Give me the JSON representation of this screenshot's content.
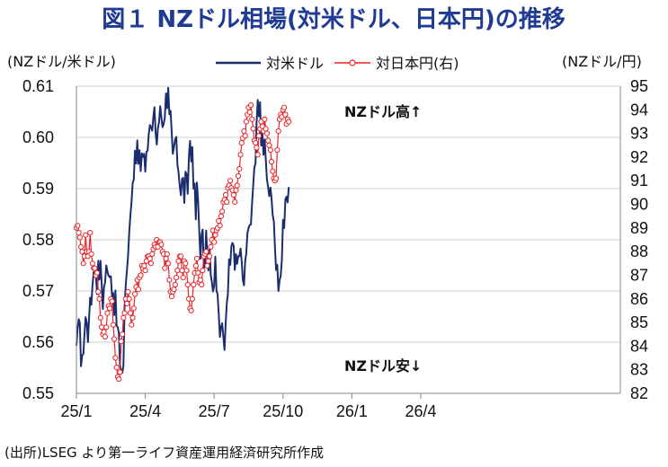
{
  "chart_data": {
    "type": "line",
    "title": "図１ NZドル相場(対米ドル、日本円)の推移",
    "ylabel_left": "(NZドル/米ドル)",
    "ylabel_right": "(NZドル/円)",
    "source": "(出所)LSEG より第一ライフ資産運用経済研究所作成",
    "x_ticks": [
      "25/1",
      "25/4",
      "25/7",
      "25/10",
      "26/1",
      "26/4"
    ],
    "y_left": {
      "min": 0.55,
      "max": 0.61,
      "step": 0.01,
      "ticks": [
        "0.55",
        "0.56",
        "0.57",
        "0.58",
        "0.59",
        "0.60",
        "0.61"
      ]
    },
    "y_right": {
      "min": 82,
      "max": 95,
      "step": 1,
      "ticks": [
        "82",
        "83",
        "84",
        "85",
        "86",
        "87",
        "88",
        "89",
        "90",
        "91",
        "92",
        "93",
        "94",
        "95"
      ]
    },
    "annotations": {
      "up": "NZドル高↑",
      "down": "NZドル安↓"
    },
    "series": [
      {
        "name": "対米ドル",
        "axis": "left",
        "color": "#1a2d6e",
        "marker": "none",
        "x_start": "2025-01-01",
        "x_step_months": 0.05,
        "values": [
          0.5593,
          0.5626,
          0.5645,
          0.5638,
          0.5553,
          0.5574,
          0.5577,
          0.5613,
          0.5649,
          0.5638,
          0.56,
          0.5645,
          0.5687,
          0.5673,
          0.5711,
          0.5737,
          0.5732,
          0.573,
          0.5694,
          0.5759,
          0.5722,
          0.5759,
          0.5713,
          0.5665,
          0.5707,
          0.5717,
          0.575,
          0.5738,
          0.573,
          0.5727,
          0.5729,
          0.569,
          0.5696,
          0.5653,
          0.5701,
          0.5632,
          0.5629,
          0.5618,
          0.5554,
          0.5544,
          0.554,
          0.5554,
          0.567,
          0.5712,
          0.5741,
          0.5767,
          0.5813,
          0.5847,
          0.5874,
          0.5911,
          0.5918,
          0.5974,
          0.5949,
          0.5994,
          0.5948,
          0.5975,
          0.5934,
          0.5969,
          0.5962,
          0.5968,
          0.5933,
          0.5972,
          0.5974,
          0.6005,
          0.6024,
          0.602,
          0.6013,
          0.6039,
          0.6059,
          0.6009,
          0.5986,
          0.6017,
          0.603,
          0.6061,
          0.6039,
          0.602,
          0.6026,
          0.6038,
          0.6086,
          0.6057,
          0.6097,
          0.6045,
          0.6052,
          0.601,
          0.5968,
          0.5981,
          0.5996,
          0.6001,
          0.5948,
          0.5931,
          0.5906,
          0.5887,
          0.5919,
          0.5921,
          0.5872,
          0.5933,
          0.5928,
          0.589,
          0.5962,
          0.5993,
          0.5953,
          0.5981,
          0.59,
          0.591,
          0.584,
          0.5912,
          0.5878,
          0.5819,
          0.5763,
          0.581,
          0.582,
          0.5745,
          0.575,
          0.5818,
          0.5773,
          0.574,
          0.5787,
          0.5731,
          0.5719,
          0.5699,
          0.571,
          0.5767,
          0.57,
          0.5694,
          0.5655,
          0.561,
          0.563,
          0.5637,
          0.5611,
          0.5585,
          0.5636,
          0.5675,
          0.5694,
          0.5762,
          0.5751,
          0.5788,
          0.5794,
          0.5788,
          0.5741,
          0.5772,
          0.5753,
          0.5768,
          0.5768,
          0.5783,
          0.5759,
          0.5722,
          0.5711,
          0.5759,
          0.5773,
          0.5813,
          0.5823,
          0.5829,
          0.583,
          0.5869,
          0.5905,
          0.5941,
          0.5949,
          0.6029,
          0.6073,
          0.6041,
          0.6069,
          0.5984,
          0.601,
          0.5966,
          0.5996,
          0.5958,
          0.5918,
          0.5903,
          0.5885,
          0.5902,
          0.5882,
          0.5848,
          0.5836,
          0.5782,
          0.5741,
          0.5751,
          0.57,
          0.5721,
          0.5729,
          0.576,
          0.5839,
          0.5823,
          0.5879,
          0.5884,
          0.5873,
          0.5903
        ]
      },
      {
        "name": "対日本円(右)",
        "axis": "right",
        "color": "#e8262a",
        "marker": "circle",
        "x_start": "2025-01-01",
        "x_step_months": 0.05,
        "values": [
          89.0,
          89.1,
          88.8,
          88.6,
          88.2,
          88.0,
          87.5,
          87.8,
          88.7,
          88.0,
          87.8,
          88.0,
          88.8,
          87.9,
          87.5,
          87.3,
          87.3,
          87.0,
          87.1,
          86.3,
          86.0,
          85.2,
          84.8,
          84.5,
          84.6,
          84.4,
          84.8,
          85.4,
          85.7,
          85.6,
          86.0,
          85.9,
          84.9,
          84.3,
          83.5,
          83.1,
          82.7,
          82.6,
          82.9,
          84.2,
          84.5,
          85.2,
          85.4,
          86.0,
          85.8,
          86.3,
          86.0,
          85.4,
          84.9,
          85.2,
          85.6,
          86.2,
          86.5,
          86.8,
          86.4,
          86.9,
          87.0,
          87.4,
          87.3,
          87.4,
          87.2,
          87.6,
          87.8,
          87.8,
          87.7,
          87.5,
          87.9,
          88.1,
          88.3,
          88.2,
          88.5,
          88.2,
          88.4,
          88.4,
          88.3,
          88.0,
          87.9,
          87.3,
          87.7,
          87.9,
          87.5,
          86.8,
          86.3,
          86.1,
          86.3,
          86.4,
          86.6,
          86.9,
          87.2,
          87.6,
          87.8,
          87.8,
          87.2,
          86.9,
          87.6,
          87.5,
          87.2,
          86.6,
          86.0,
          85.6,
          85.5,
          86.0,
          86.6,
          87.1,
          87.4,
          87.7,
          87.1,
          86.7,
          86.8,
          86.6,
          87.2,
          87.8,
          87.9,
          88.0,
          87.4,
          87.6,
          87.8,
          88.2,
          88.5,
          88.9,
          88.4,
          88.7,
          88.9,
          89.0,
          89.3,
          89.1,
          89.5,
          89.7,
          90.1,
          90.2,
          90.4,
          90.1,
          90.7,
          90.8,
          91.0,
          90.7,
          90.6,
          90.4,
          90.1,
          90.6,
          90.8,
          91.2,
          91.5,
          92.1,
          92.6,
          92.8,
          93.1,
          92.9,
          93.5,
          93.8,
          94.1,
          93.9,
          94.2,
          93.6,
          93.2,
          92.7,
          92.6,
          92.4,
          92.1,
          92.9,
          93.2,
          93.5,
          93.3,
          93.1,
          93.6,
          93.2,
          93.0,
          92.7,
          92.5,
          92.3,
          91.8,
          91.4,
          91.1,
          91.0,
          91.1,
          92.3,
          93.1,
          93.6,
          93.8,
          93.7,
          94.0,
          94.1,
          93.8,
          93.4,
          93.6,
          93.5
        ]
      }
    ]
  }
}
